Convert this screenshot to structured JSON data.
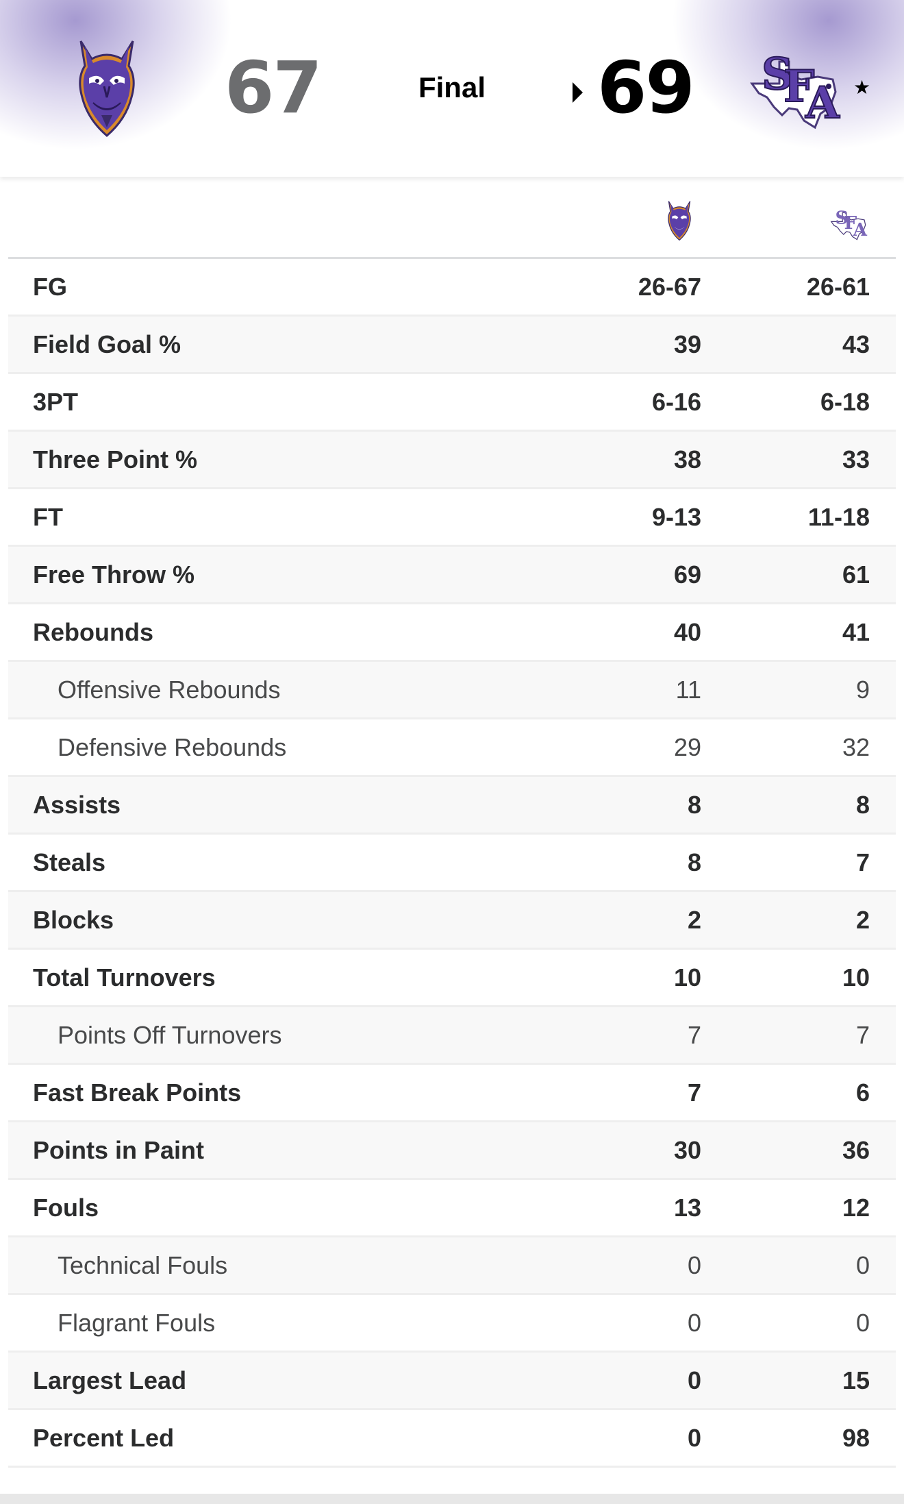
{
  "scoreboard": {
    "away_team_logo": "northwestern-state-demons-logo",
    "home_team_logo": "stephen-f-austin-sfa-logo",
    "away_score": "67",
    "home_score": "69",
    "status": "Final",
    "winner_indicator": "arrow-right-icon",
    "home_marker": "★",
    "accent_color": "#5b3fa8"
  },
  "stats_header": {
    "away_logo": "northwestern-state-demons-logo",
    "home_logo": "stephen-f-austin-sfa-logo"
  },
  "stats": [
    {
      "label": "FG",
      "away": "26-67",
      "home": "26-61",
      "sub": false
    },
    {
      "label": "Field Goal %",
      "away": "39",
      "home": "43",
      "sub": false
    },
    {
      "label": "3PT",
      "away": "6-16",
      "home": "6-18",
      "sub": false
    },
    {
      "label": "Three Point %",
      "away": "38",
      "home": "33",
      "sub": false
    },
    {
      "label": "FT",
      "away": "9-13",
      "home": "11-18",
      "sub": false
    },
    {
      "label": "Free Throw %",
      "away": "69",
      "home": "61",
      "sub": false
    },
    {
      "label": "Rebounds",
      "away": "40",
      "home": "41",
      "sub": false
    },
    {
      "label": "Offensive Rebounds",
      "away": "11",
      "home": "9",
      "sub": true
    },
    {
      "label": "Defensive Rebounds",
      "away": "29",
      "home": "32",
      "sub": true
    },
    {
      "label": "Assists",
      "away": "8",
      "home": "8",
      "sub": false
    },
    {
      "label": "Steals",
      "away": "8",
      "home": "7",
      "sub": false
    },
    {
      "label": "Blocks",
      "away": "2",
      "home": "2",
      "sub": false
    },
    {
      "label": "Total Turnovers",
      "away": "10",
      "home": "10",
      "sub": false
    },
    {
      "label": "Points Off Turnovers",
      "away": "7",
      "home": "7",
      "sub": true
    },
    {
      "label": "Fast Break Points",
      "away": "7",
      "home": "6",
      "sub": false
    },
    {
      "label": "Points in Paint",
      "away": "30",
      "home": "36",
      "sub": false
    },
    {
      "label": "Fouls",
      "away": "13",
      "home": "12",
      "sub": false
    },
    {
      "label": "Technical Fouls",
      "away": "0",
      "home": "0",
      "sub": true
    },
    {
      "label": "Flagrant Fouls",
      "away": "0",
      "home": "0",
      "sub": true
    },
    {
      "label": "Largest Lead",
      "away": "0",
      "home": "15",
      "sub": false
    },
    {
      "label": "Percent Led",
      "away": "0",
      "home": "98",
      "sub": false
    }
  ]
}
